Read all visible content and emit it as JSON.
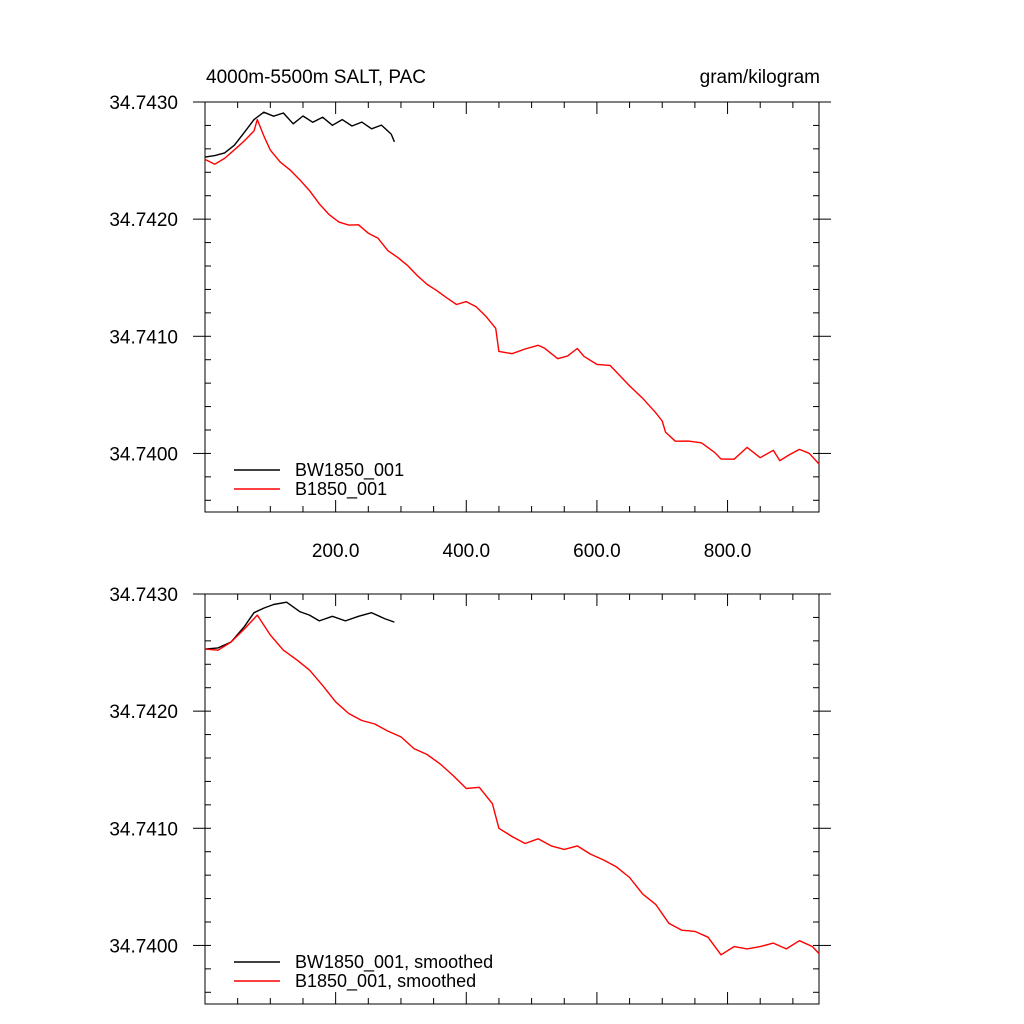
{
  "colors": {
    "black_series": "#000000",
    "red_series": "#ff0000"
  },
  "chart_data": [
    {
      "type": "line",
      "title": "4000m-5500m SALT, PAC",
      "units": "gram/kilogram",
      "xlabel": "",
      "ylabel": "",
      "xlim": [
        0,
        940
      ],
      "ylim": [
        34.7395,
        34.743
      ],
      "x_ticks": [
        200,
        400,
        600,
        800
      ],
      "x_tick_labels": [
        "200.0",
        "400.0",
        "600.0",
        "800.0"
      ],
      "y_ticks": [
        34.74,
        34.741,
        34.742,
        34.743
      ],
      "y_tick_labels": [
        "34.7400",
        "34.7410",
        "34.7420",
        "34.7430"
      ],
      "legend": "bottom-left",
      "series": [
        {
          "name": "BW1850_001",
          "color": "#000000",
          "x": [
            0,
            15,
            30,
            45,
            60,
            75,
            90,
            105,
            120,
            135,
            150,
            165,
            180,
            195,
            210,
            225,
            240,
            255,
            270,
            285,
            290
          ],
          "y": [
            34.74253,
            34.74255,
            34.74258,
            34.74265,
            34.74276,
            34.74287,
            34.74293,
            34.74289,
            34.74291,
            34.74281,
            34.74287,
            34.74281,
            34.74285,
            34.74278,
            34.74283,
            34.74278,
            34.74282,
            34.74277,
            34.74281,
            34.74274,
            34.74266
          ]
        },
        {
          "name": "B1850_001",
          "color": "#ff0000",
          "x": [
            0,
            15,
            30,
            45,
            60,
            75,
            80,
            90,
            100,
            115,
            130,
            145,
            160,
            175,
            190,
            205,
            220,
            235,
            250,
            265,
            280,
            295,
            310,
            325,
            340,
            355,
            370,
            385,
            400,
            415,
            430,
            445,
            450,
            470,
            490,
            510,
            520,
            540,
            555,
            570,
            580,
            600,
            620,
            630,
            650,
            670,
            690,
            700,
            705,
            720,
            740,
            760,
            780,
            790,
            810,
            830,
            850,
            870,
            880,
            895,
            910,
            925,
            940
          ],
          "y": [
            34.74251,
            34.74249,
            34.74254,
            34.74261,
            34.74268,
            34.74276,
            34.74283,
            34.74271,
            34.74261,
            34.74251,
            34.74244,
            34.74235,
            34.74225,
            34.74213,
            34.74203,
            34.74196,
            34.74193,
            34.74193,
            34.74186,
            34.74182,
            34.74172,
            34.74167,
            34.74161,
            34.74153,
            34.74146,
            34.74141,
            34.74135,
            34.74129,
            34.74131,
            34.74126,
            34.74117,
            34.74106,
            34.74086,
            34.74087,
            34.74087,
            34.74094,
            34.74088,
            34.74083,
            34.74085,
            34.74091,
            34.74084,
            34.74076,
            34.74074,
            34.74068,
            34.74058,
            34.74048,
            34.74033,
            34.74027,
            34.74017,
            34.7401,
            34.74012,
            34.74007,
            34.74003,
            34.73994,
            34.73997,
            34.74003,
            34.73998,
            34.74002,
            34.73996,
            34.74001,
            34.74005,
            34.74001,
            34.73991
          ]
        }
      ]
    },
    {
      "type": "line",
      "title": "",
      "units": "",
      "xlabel": "",
      "ylabel": "",
      "xlim": [
        0,
        940
      ],
      "ylim": [
        34.7395,
        34.743
      ],
      "x_ticks": [
        200,
        400,
        600,
        800
      ],
      "x_tick_labels": [],
      "y_ticks": [
        34.74,
        34.741,
        34.742,
        34.743
      ],
      "y_tick_labels": [
        "34.7400",
        "34.7410",
        "34.7420",
        "34.7430"
      ],
      "legend": "bottom-left",
      "series": [
        {
          "name": "BW1850_001, smoothed",
          "color": "#000000",
          "x": [
            0,
            20,
            40,
            60,
            75,
            90,
            105,
            125,
            145,
            160,
            175,
            195,
            215,
            235,
            255,
            275,
            290
          ],
          "y": [
            34.74253,
            34.74254,
            34.74259,
            34.74272,
            34.74284,
            34.74288,
            34.74291,
            34.74293,
            34.74285,
            34.74282,
            34.74277,
            34.74281,
            34.74277,
            34.74281,
            34.74284,
            34.74279,
            34.74276
          ]
        },
        {
          "name": "B1850_001, smoothed",
          "color": "#ff0000",
          "x": [
            0,
            20,
            40,
            60,
            80,
            100,
            120,
            140,
            160,
            180,
            200,
            220,
            240,
            260,
            280,
            300,
            320,
            340,
            360,
            380,
            400,
            420,
            440,
            450,
            470,
            490,
            510,
            530,
            550,
            570,
            590,
            610,
            630,
            650,
            670,
            690,
            710,
            730,
            750,
            770,
            790,
            810,
            830,
            850,
            870,
            890,
            910,
            930,
            940
          ],
          "y": [
            34.74253,
            34.74252,
            34.74259,
            34.7427,
            34.74282,
            34.74265,
            34.74252,
            34.74244,
            34.74235,
            34.74222,
            34.74208,
            34.74198,
            34.74192,
            34.74189,
            34.74183,
            34.74178,
            34.74168,
            34.74163,
            34.74155,
            34.74145,
            34.74134,
            34.74135,
            34.74121,
            34.741,
            34.74093,
            34.74087,
            34.74091,
            34.74085,
            34.74082,
            34.74085,
            34.74078,
            34.74073,
            34.74067,
            34.74058,
            34.74044,
            34.74035,
            34.74019,
            34.74013,
            34.74012,
            34.74007,
            34.73992,
            34.73999,
            34.73997,
            34.73999,
            34.74002,
            34.73997,
            34.74004,
            34.73999,
            34.73993
          ]
        }
      ]
    }
  ]
}
